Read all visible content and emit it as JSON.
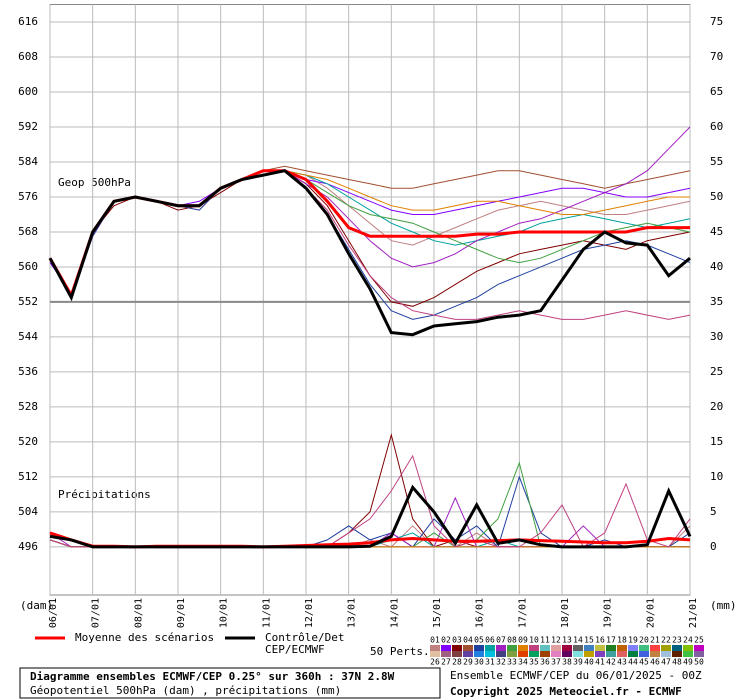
{
  "chart_data": {
    "type": "line",
    "title": "Diagramme ensembles ECMWF/CEP 0.25° sur 360h : 37N 2.8W",
    "subtitle": "Géopotentiel 500hPa (dam) , précipitations (mm)",
    "y_label": "(dam)",
    "y2_label": "(mm)",
    "geop_label": "Geop 500hPa",
    "precip_label": "Précipitations",
    "run_info": "Ensemble ECMWF/CEP du 06/01/2025 - 00Z",
    "copyright": "Copyright 2025 Meteociel.fr - ECMWF",
    "perturbations_label": "50 Perts.",
    "categories": [
      "06/01",
      null,
      "07/01",
      null,
      "08/01",
      null,
      "09/01",
      null,
      "10/01",
      null,
      "11/01",
      null,
      "12/01",
      null,
      "13/01",
      null,
      "14/01",
      null,
      "15/01",
      null,
      "16/01",
      null,
      "17/01",
      null,
      "18/01",
      null,
      "19/01",
      null,
      "20/01",
      null,
      "21/01"
    ],
    "ylim": [
      485,
      620
    ],
    "yticks": [
      496,
      504,
      512,
      520,
      528,
      536,
      544,
      552,
      560,
      568,
      576,
      584,
      592,
      600,
      608,
      616
    ],
    "y2lim": [
      -6.875,
      77.5
    ],
    "y2ticks": [
      0,
      5,
      10,
      15,
      20,
      25,
      30,
      35,
      40,
      45,
      50,
      55,
      60,
      65,
      70,
      75
    ],
    "reference_line": 552,
    "grid": true,
    "series": [
      {
        "name": "Moyenne des scénarios",
        "color": "#ff0000",
        "values": [
          562,
          553.5,
          568,
          575,
          576,
          575,
          574,
          574,
          578,
          580,
          582,
          582,
          580,
          575,
          569,
          567,
          567,
          567,
          567,
          567,
          567.5,
          567.5,
          568,
          568,
          568,
          568,
          568,
          568,
          569,
          569,
          569
        ],
        "precip": [
          2,
          1,
          0.1,
          0.1,
          0,
          0.1,
          0.1,
          0.1,
          0.1,
          0.1,
          0,
          0.1,
          0.2,
          0.3,
          0.4,
          0.6,
          1,
          1.2,
          1,
          0.8,
          0.8,
          0.9,
          1,
          0.9,
          0.8,
          0.7,
          0.6,
          0.6,
          0.8,
          1.2,
          1
        ]
      },
      {
        "name": "Contrôle/Det\nCEP/ECMWF",
        "color": "#000000",
        "values": [
          562,
          553,
          568,
          575,
          576,
          575,
          574,
          574,
          578,
          580,
          581,
          582,
          578,
          572,
          563,
          555,
          545,
          544.5,
          546.5,
          547,
          547.5,
          548.5,
          549,
          550,
          557,
          564,
          568,
          565.5,
          565,
          558,
          562
        ],
        "precip": [
          1.5,
          1,
          0,
          0,
          0,
          0,
          0,
          0,
          0,
          0,
          0,
          0,
          0,
          0,
          0,
          0.1,
          1.5,
          8.5,
          5,
          0.5,
          6,
          0.5,
          1,
          0.3,
          0,
          0,
          0,
          0,
          0.3,
          8,
          1.5
        ]
      }
    ],
    "members": [
      {
        "name": "01",
        "color": "#c08080",
        "values": [
          562,
          553,
          568,
          575,
          576,
          575,
          574,
          573,
          578,
          580,
          582,
          582,
          581,
          578,
          574,
          570,
          566,
          565,
          567,
          569,
          571,
          573,
          574,
          575,
          574,
          573,
          572,
          572,
          573,
          574,
          575
        ],
        "precip": [
          2,
          1,
          0,
          0,
          0,
          0,
          0,
          0,
          0,
          0,
          0,
          0,
          0,
          0,
          0,
          1,
          0,
          3,
          0,
          0,
          2,
          0,
          0,
          0,
          0,
          0,
          0,
          0,
          0,
          0,
          3
        ]
      },
      {
        "name": "02",
        "color": "#8000ff",
        "values": [
          561,
          554,
          567,
          575,
          576,
          575,
          574,
          575,
          578,
          580,
          581,
          582,
          580,
          579,
          577,
          575,
          573,
          572,
          572,
          573,
          574,
          575,
          576,
          577,
          578,
          578,
          577,
          576,
          576,
          577,
          578
        ],
        "precip": [
          1,
          0,
          0,
          0,
          0,
          0,
          0,
          0,
          0,
          0,
          0,
          0,
          0,
          0,
          0,
          0,
          0,
          0,
          0,
          0,
          0,
          0,
          0,
          0,
          0,
          0,
          0,
          0,
          0,
          0,
          0
        ]
      },
      {
        "name": "03",
        "color": "#800000",
        "values": [
          562,
          553,
          568,
          574,
          576,
          575,
          573,
          574,
          577,
          580,
          582,
          582,
          579,
          574,
          566,
          558,
          552,
          551,
          553,
          556,
          559,
          561,
          563,
          564,
          565,
          566,
          565,
          564,
          566,
          567,
          568
        ],
        "precip": [
          1,
          0,
          0,
          0,
          0,
          0,
          0,
          0,
          0,
          0,
          0,
          0,
          0,
          0,
          2,
          5,
          16,
          4,
          0,
          1,
          0,
          0,
          0,
          0,
          0,
          0,
          0,
          0,
          0,
          0,
          0
        ]
      },
      {
        "name": "04",
        "color": "#a05030",
        "values": [
          562,
          554,
          568,
          575,
          576,
          575,
          574,
          574,
          578,
          580,
          582,
          583,
          582,
          581,
          580,
          579,
          578,
          578,
          579,
          580,
          581,
          582,
          582,
          581,
          580,
          579,
          578,
          579,
          580,
          581,
          582
        ],
        "precip": [
          2,
          1,
          0,
          0,
          0,
          0,
          0,
          0,
          0,
          0,
          0,
          0,
          0,
          0,
          0,
          0,
          0,
          0,
          0,
          0,
          0,
          0,
          0,
          0,
          0,
          0,
          0,
          0,
          0,
          0,
          0
        ]
      },
      {
        "name": "05",
        "color": "#2040a0",
        "values": [
          562,
          553,
          567,
          575,
          576,
          575,
          574,
          573,
          578,
          580,
          581,
          582,
          578,
          572,
          564,
          556,
          550,
          548,
          549,
          551,
          553,
          556,
          558,
          560,
          562,
          564,
          565,
          566,
          565,
          563,
          561
        ],
        "precip": [
          1,
          0,
          0,
          0,
          0,
          0,
          0,
          0,
          0,
          0,
          0,
          0,
          0,
          1,
          3,
          1,
          2,
          0,
          4,
          1,
          3,
          0,
          10,
          2,
          0,
          0,
          1,
          0,
          0,
          0,
          2
        ]
      },
      {
        "name": "06",
        "color": "#00a0a0",
        "values": [
          562,
          553,
          568,
          575,
          576,
          575,
          574,
          574,
          578,
          580,
          582,
          582,
          581,
          579,
          576,
          573,
          570,
          568,
          566,
          565,
          566,
          567,
          568,
          570,
          571,
          572,
          571,
          570,
          569,
          570,
          571
        ],
        "precip": [
          1,
          0,
          0,
          0,
          0,
          0,
          0,
          0,
          0,
          0,
          0,
          0,
          0,
          0,
          0,
          0,
          1,
          2,
          0,
          0,
          0,
          1,
          0,
          0,
          0,
          0,
          0,
          0,
          0,
          0,
          0
        ]
      },
      {
        "name": "07",
        "color": "#a020c0",
        "values": [
          562,
          553,
          568,
          575,
          576,
          575,
          574,
          574,
          578,
          580,
          582,
          582,
          579,
          576,
          571,
          566,
          562,
          560,
          561,
          563,
          566,
          568,
          570,
          571,
          573,
          575,
          577,
          579,
          582,
          587,
          592
        ],
        "precip": [
          2,
          0,
          0,
          0,
          0,
          0,
          0,
          0,
          0,
          0,
          0,
          0,
          0,
          0,
          0,
          0,
          2,
          0,
          0,
          7,
          0,
          0,
          0,
          0,
          0,
          3,
          0,
          0,
          0,
          0,
          0
        ]
      },
      {
        "name": "08",
        "color": "#40a040",
        "values": [
          562,
          553,
          568,
          575,
          576,
          575,
          574,
          574,
          578,
          580,
          582,
          582,
          580,
          577,
          574,
          572,
          571,
          570,
          568,
          566,
          564,
          562,
          561,
          562,
          564,
          566,
          568,
          569,
          570,
          569,
          568
        ],
        "precip": [
          1,
          0,
          0,
          0,
          0,
          0,
          0,
          0,
          0,
          0,
          0,
          0,
          0,
          0,
          0,
          0,
          0,
          0,
          2,
          0,
          1,
          4,
          12,
          0,
          0,
          0,
          0,
          0,
          0,
          0,
          0
        ]
      },
      {
        "name": "09",
        "color": "#e08000",
        "values": [
          562,
          553,
          568,
          575,
          576,
          575,
          574,
          574,
          578,
          580,
          582,
          582,
          581,
          580,
          578,
          576,
          574,
          573,
          573,
          574,
          575,
          575,
          574,
          573,
          572,
          572,
          573,
          574,
          575,
          576,
          576
        ],
        "precip": [
          1,
          0,
          0,
          0,
          0,
          0,
          0,
          0,
          0,
          0,
          0,
          0,
          0,
          0,
          0,
          0,
          0,
          0,
          0,
          0,
          0,
          0,
          0,
          0,
          0,
          0,
          0,
          0,
          0,
          0,
          0
        ]
      },
      {
        "name": "10",
        "color": "#c04080",
        "values": [
          562,
          553,
          568,
          575,
          576,
          575,
          574,
          574,
          578,
          580,
          582,
          582,
          578,
          573,
          565,
          558,
          553,
          550,
          549,
          548,
          548,
          549,
          550,
          549,
          548,
          548,
          549,
          550,
          549,
          548,
          549
        ],
        "precip": [
          1,
          0,
          0,
          0,
          0,
          0,
          0,
          0,
          0,
          0,
          0,
          0,
          0,
          0,
          2,
          4,
          8,
          13,
          3,
          0,
          1,
          0,
          0,
          2,
          6,
          0,
          2,
          9,
          1,
          0,
          4
        ]
      },
      {
        "name": "11",
        "color": "#60c0c0"
      },
      {
        "name": "12",
        "color": "#e0a0a0"
      },
      {
        "name": "13",
        "color": "#a00040"
      },
      {
        "name": "14",
        "color": "#606060"
      },
      {
        "name": "15",
        "color": "#4080c0"
      },
      {
        "name": "16",
        "color": "#c0c040"
      },
      {
        "name": "17",
        "color": "#208020"
      },
      {
        "name": "18",
        "color": "#c06000"
      },
      {
        "name": "19",
        "color": "#8080ff"
      },
      {
        "name": "20",
        "color": "#40c080"
      },
      {
        "name": "21",
        "color": "#ff4040"
      },
      {
        "name": "22",
        "color": "#a0a000"
      },
      {
        "name": "23",
        "color": "#006080"
      },
      {
        "name": "24",
        "color": "#80c000"
      },
      {
        "name": "25",
        "color": "#c000c0"
      },
      {
        "name": "26",
        "color": "#e0c0a0"
      },
      {
        "name": "27",
        "color": "#a06080"
      },
      {
        "name": "28",
        "color": "#804040"
      },
      {
        "name": "29",
        "color": "#6040a0"
      },
      {
        "name": "30",
        "color": "#2080e0"
      },
      {
        "name": "31",
        "color": "#00c0e0"
      },
      {
        "name": "32",
        "color": "#404080"
      },
      {
        "name": "33",
        "color": "#80a040"
      },
      {
        "name": "34",
        "color": "#e04000"
      },
      {
        "name": "35",
        "color": "#00a060"
      },
      {
        "name": "36",
        "color": "#a04000"
      },
      {
        "name": "37",
        "color": "#e080c0"
      },
      {
        "name": "38",
        "color": "#600060"
      },
      {
        "name": "39",
        "color": "#80e0e0"
      },
      {
        "name": "40",
        "color": "#c0a000"
      },
      {
        "name": "41",
        "color": "#8040c0"
      },
      {
        "name": "42",
        "color": "#40a0a0"
      },
      {
        "name": "43",
        "color": "#e06060"
      },
      {
        "name": "44",
        "color": "#008040"
      },
      {
        "name": "45",
        "color": "#4060e0"
      },
      {
        "name": "46",
        "color": "#c08040"
      },
      {
        "name": "47",
        "color": "#a0c0e0"
      },
      {
        "name": "48",
        "color": "#602000"
      },
      {
        "name": "49",
        "color": "#40c040"
      },
      {
        "name": "50",
        "color": "#8060a0"
      }
    ]
  }
}
